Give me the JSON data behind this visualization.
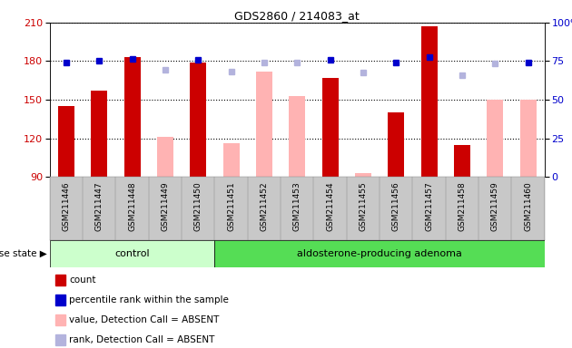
{
  "title": "GDS2860 / 214083_at",
  "samples": [
    "GSM211446",
    "GSM211447",
    "GSM211448",
    "GSM211449",
    "GSM211450",
    "GSM211451",
    "GSM211452",
    "GSM211453",
    "GSM211454",
    "GSM211455",
    "GSM211456",
    "GSM211457",
    "GSM211458",
    "GSM211459",
    "GSM211460"
  ],
  "count_values": [
    145,
    157,
    183,
    null,
    179,
    null,
    null,
    null,
    167,
    null,
    140,
    207,
    115,
    null,
    null
  ],
  "count_absent_values": [
    null,
    null,
    null,
    121,
    null,
    116,
    172,
    153,
    null,
    93,
    null,
    null,
    null,
    150,
    150
  ],
  "percentile_values": [
    179,
    180,
    182,
    null,
    181,
    null,
    null,
    null,
    181,
    null,
    179,
    183,
    null,
    null,
    179
  ],
  "percentile_absent_values": [
    null,
    null,
    null,
    173,
    null,
    172,
    179,
    179,
    null,
    171,
    null,
    null,
    169,
    178,
    null
  ],
  "ylim_left": [
    90,
    210
  ],
  "ylim_right": [
    0,
    100
  ],
  "yticks_left": [
    90,
    120,
    150,
    180,
    210
  ],
  "yticks_right": [
    0,
    25,
    50,
    75,
    100
  ],
  "group_control": [
    0,
    1,
    2,
    3,
    4
  ],
  "group_adenoma": [
    5,
    6,
    7,
    8,
    9,
    10,
    11,
    12,
    13,
    14
  ],
  "control_label": "control",
  "adenoma_label": "aldosterone-producing adenoma",
  "disease_state_label": "disease state",
  "bar_color_present": "#cc0000",
  "bar_color_absent": "#ffb3b3",
  "dot_color_present": "#0000cc",
  "dot_color_absent": "#b3b3dd",
  "legend_items": [
    "count",
    "percentile rank within the sample",
    "value, Detection Call = ABSENT",
    "rank, Detection Call = ABSENT"
  ],
  "group_bg_control": "#ccffcc",
  "group_bg_adenoma": "#55dd55",
  "xtick_bg": "#c8c8c8"
}
